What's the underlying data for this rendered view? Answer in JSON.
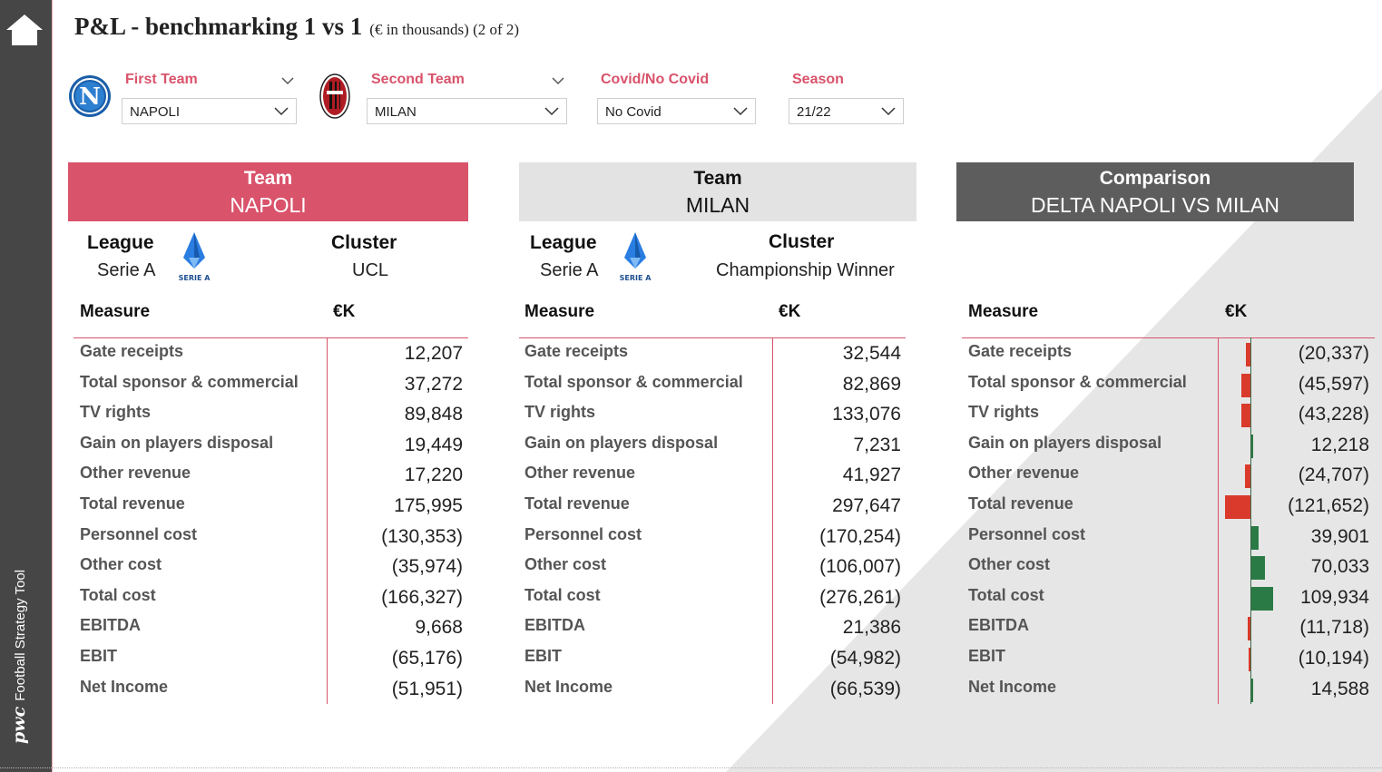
{
  "title": {
    "main": "P&L - benchmarking 1 vs 1",
    "sub": "(€ in thousands) (2 of 2)"
  },
  "sidebar": {
    "brand_logo": "pwc",
    "brand_text": "Football Strategy Tool",
    "home_icon": "home-icon"
  },
  "slicers": {
    "first_team": {
      "label": "First Team",
      "value": "NAPOLI"
    },
    "second_team": {
      "label": "Second Team",
      "value": "MILAN"
    },
    "covid": {
      "label": "Covid/No Covid",
      "value": "No Covid"
    },
    "season": {
      "label": "Season",
      "value": "21/22"
    }
  },
  "logos": {
    "first_team": "napoli-crest-icon",
    "second_team": "milan-crest-icon",
    "league": "serie-a-logo-icon"
  },
  "colors": {
    "accent": "#d9536b",
    "negative_bar": "#d93a2b",
    "positive_bar": "#2a7a45",
    "sidebar": "#464646",
    "comparison_header": "#5d5d5d",
    "milan_header": "#e3e3e3"
  },
  "panels": {
    "napoli": {
      "team_heading": "Team",
      "team_name": "NAPOLI",
      "league_label": "League",
      "league_value": "Serie A",
      "cluster_label": "Cluster",
      "cluster_value": "UCL",
      "league_logo_text": "SERIE A"
    },
    "milan": {
      "team_heading": "Team",
      "team_name": "MILAN",
      "league_label": "League",
      "league_value": "Serie A",
      "cluster_label": "Cluster",
      "cluster_value": "Championship Winner",
      "league_logo_text": "SERIE A"
    },
    "comparison": {
      "heading": "Comparison",
      "name": "DELTA NAPOLI VS MILAN"
    }
  },
  "table": {
    "measure_header": "Measure",
    "value_header": "€K",
    "rows": [
      {
        "measure": "Gate receipts",
        "napoli": "12,207",
        "milan": "32,544",
        "delta": "(20,337)",
        "delta_value": -20337
      },
      {
        "measure": "Total sponsor & commercial",
        "napoli": "37,272",
        "milan": "82,869",
        "delta": "(45,597)",
        "delta_value": -45597
      },
      {
        "measure": "TV rights",
        "napoli": "89,848",
        "milan": "133,076",
        "delta": "(43,228)",
        "delta_value": -43228
      },
      {
        "measure": "Gain on players disposal",
        "napoli": "19,449",
        "milan": "7,231",
        "delta": "12,218",
        "delta_value": 12218
      },
      {
        "measure": "Other revenue",
        "napoli": "17,220",
        "milan": "41,927",
        "delta": "(24,707)",
        "delta_value": -24707
      },
      {
        "measure": "Total revenue",
        "napoli": "175,995",
        "milan": "297,647",
        "delta": "(121,652)",
        "delta_value": -121652
      },
      {
        "measure": "Personnel cost",
        "napoli": "(130,353)",
        "milan": "(170,254)",
        "delta": "39,901",
        "delta_value": 39901
      },
      {
        "measure": "Other cost",
        "napoli": "(35,974)",
        "milan": "(106,007)",
        "delta": "70,033",
        "delta_value": 70033
      },
      {
        "measure": "Total cost",
        "napoli": "(166,327)",
        "milan": "(276,261)",
        "delta": "109,934",
        "delta_value": 109934
      },
      {
        "measure": "EBITDA",
        "napoli": "9,668",
        "milan": "21,386",
        "delta": "(11,718)",
        "delta_value": -11718
      },
      {
        "measure": "EBIT",
        "napoli": "(65,176)",
        "milan": "(54,982)",
        "delta": "(10,194)",
        "delta_value": -10194
      },
      {
        "measure": "Net Income",
        "napoli": "(51,951)",
        "milan": "(66,539)",
        "delta": "14,588",
        "delta_value": 14588
      }
    ]
  }
}
